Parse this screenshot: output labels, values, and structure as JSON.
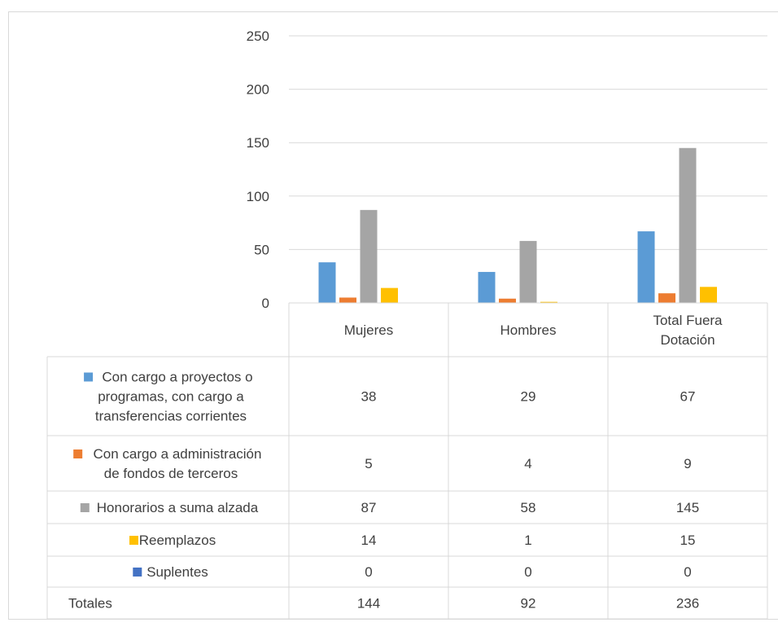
{
  "chart_data": {
    "type": "bar",
    "categories": [
      "Mujeres",
      "Hombres",
      "Total Fuera Dotación"
    ],
    "category_label_lines": [
      [
        "Mujeres"
      ],
      [
        "Hombres"
      ],
      [
        "Total Fuera",
        "Dotación"
      ]
    ],
    "y_ticks": [
      0,
      50,
      100,
      150,
      200,
      250
    ],
    "ylim": [
      0,
      250
    ],
    "grid": true,
    "legend_placement": "data-table-left",
    "series": [
      {
        "name": "Con cargo a proyectos o programas, con cargo a transferencias corrientes",
        "name_lines": [
          "Con cargo a proyectos o",
          "programas, con cargo a",
          "transferencias corrientes"
        ],
        "color": "#5B9BD5",
        "values": [
          38,
          29,
          67
        ]
      },
      {
        "name": "Con cargo a administración de fondos de terceros",
        "name_lines": [
          "Con cargo a administración",
          "de fondos de terceros"
        ],
        "color": "#ED7D31",
        "values": [
          5,
          4,
          9
        ]
      },
      {
        "name": "Honorarios a suma alzada",
        "name_lines": [
          "Honorarios a suma alzada"
        ],
        "color": "#A5A5A5",
        "values": [
          87,
          58,
          145
        ]
      },
      {
        "name": "Reemplazos",
        "name_lines": [
          "Reemplazos"
        ],
        "color": "#FFC000",
        "values": [
          14,
          1,
          15
        ]
      },
      {
        "name": "Suplentes",
        "name_lines": [
          "Suplentes"
        ],
        "color": "#4472C4",
        "values": [
          0,
          0,
          0
        ]
      }
    ],
    "totals_row": {
      "label": "Totales",
      "values": [
        144,
        92,
        236
      ]
    }
  }
}
